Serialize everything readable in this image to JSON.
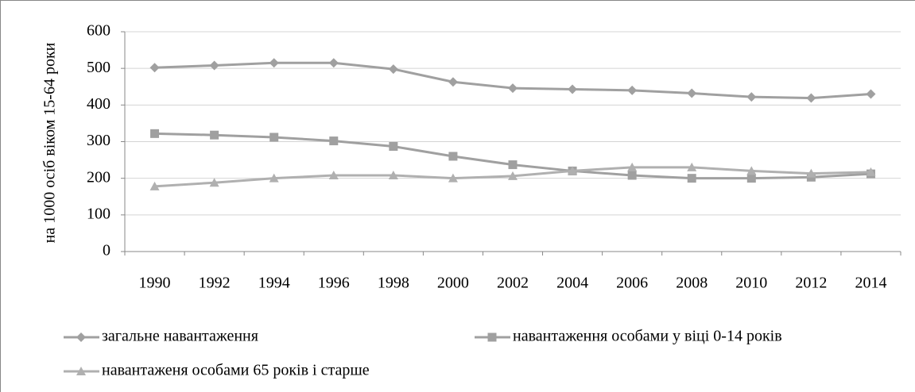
{
  "chart_data": {
    "type": "line",
    "y_label": "на 1000 осіб віком 15-64 роки",
    "categories": [
      "1990",
      "1992",
      "1994",
      "1996",
      "1998",
      "2000",
      "2002",
      "2004",
      "2006",
      "2008",
      "2010",
      "2012",
      "2014"
    ],
    "series": [
      {
        "name": "загальне навантаження",
        "color": "#a0a0a0",
        "marker": "diamond",
        "values": [
          502,
          508,
          515,
          515,
          498,
          463,
          446,
          443,
          440,
          432,
          422,
          419,
          430
        ]
      },
      {
        "name": "навантаження особами у віці 0-14 років",
        "color": "#a0a0a0",
        "marker": "square",
        "values": [
          322,
          318,
          312,
          302,
          287,
          260,
          237,
          220,
          208,
          200,
          200,
          203,
          212
        ]
      },
      {
        "name": "навантаженя особами 65 років і старше",
        "color": "#b0b0b0",
        "marker": "triangle",
        "values": [
          178,
          188,
          200,
          208,
          208,
          200,
          206,
          220,
          230,
          230,
          220,
          213,
          217
        ]
      }
    ],
    "ylim": [
      0,
      600
    ],
    "yticks": [
      0,
      100,
      200,
      300,
      400,
      500,
      600
    ],
    "grid": true,
    "legend": "bottom"
  }
}
